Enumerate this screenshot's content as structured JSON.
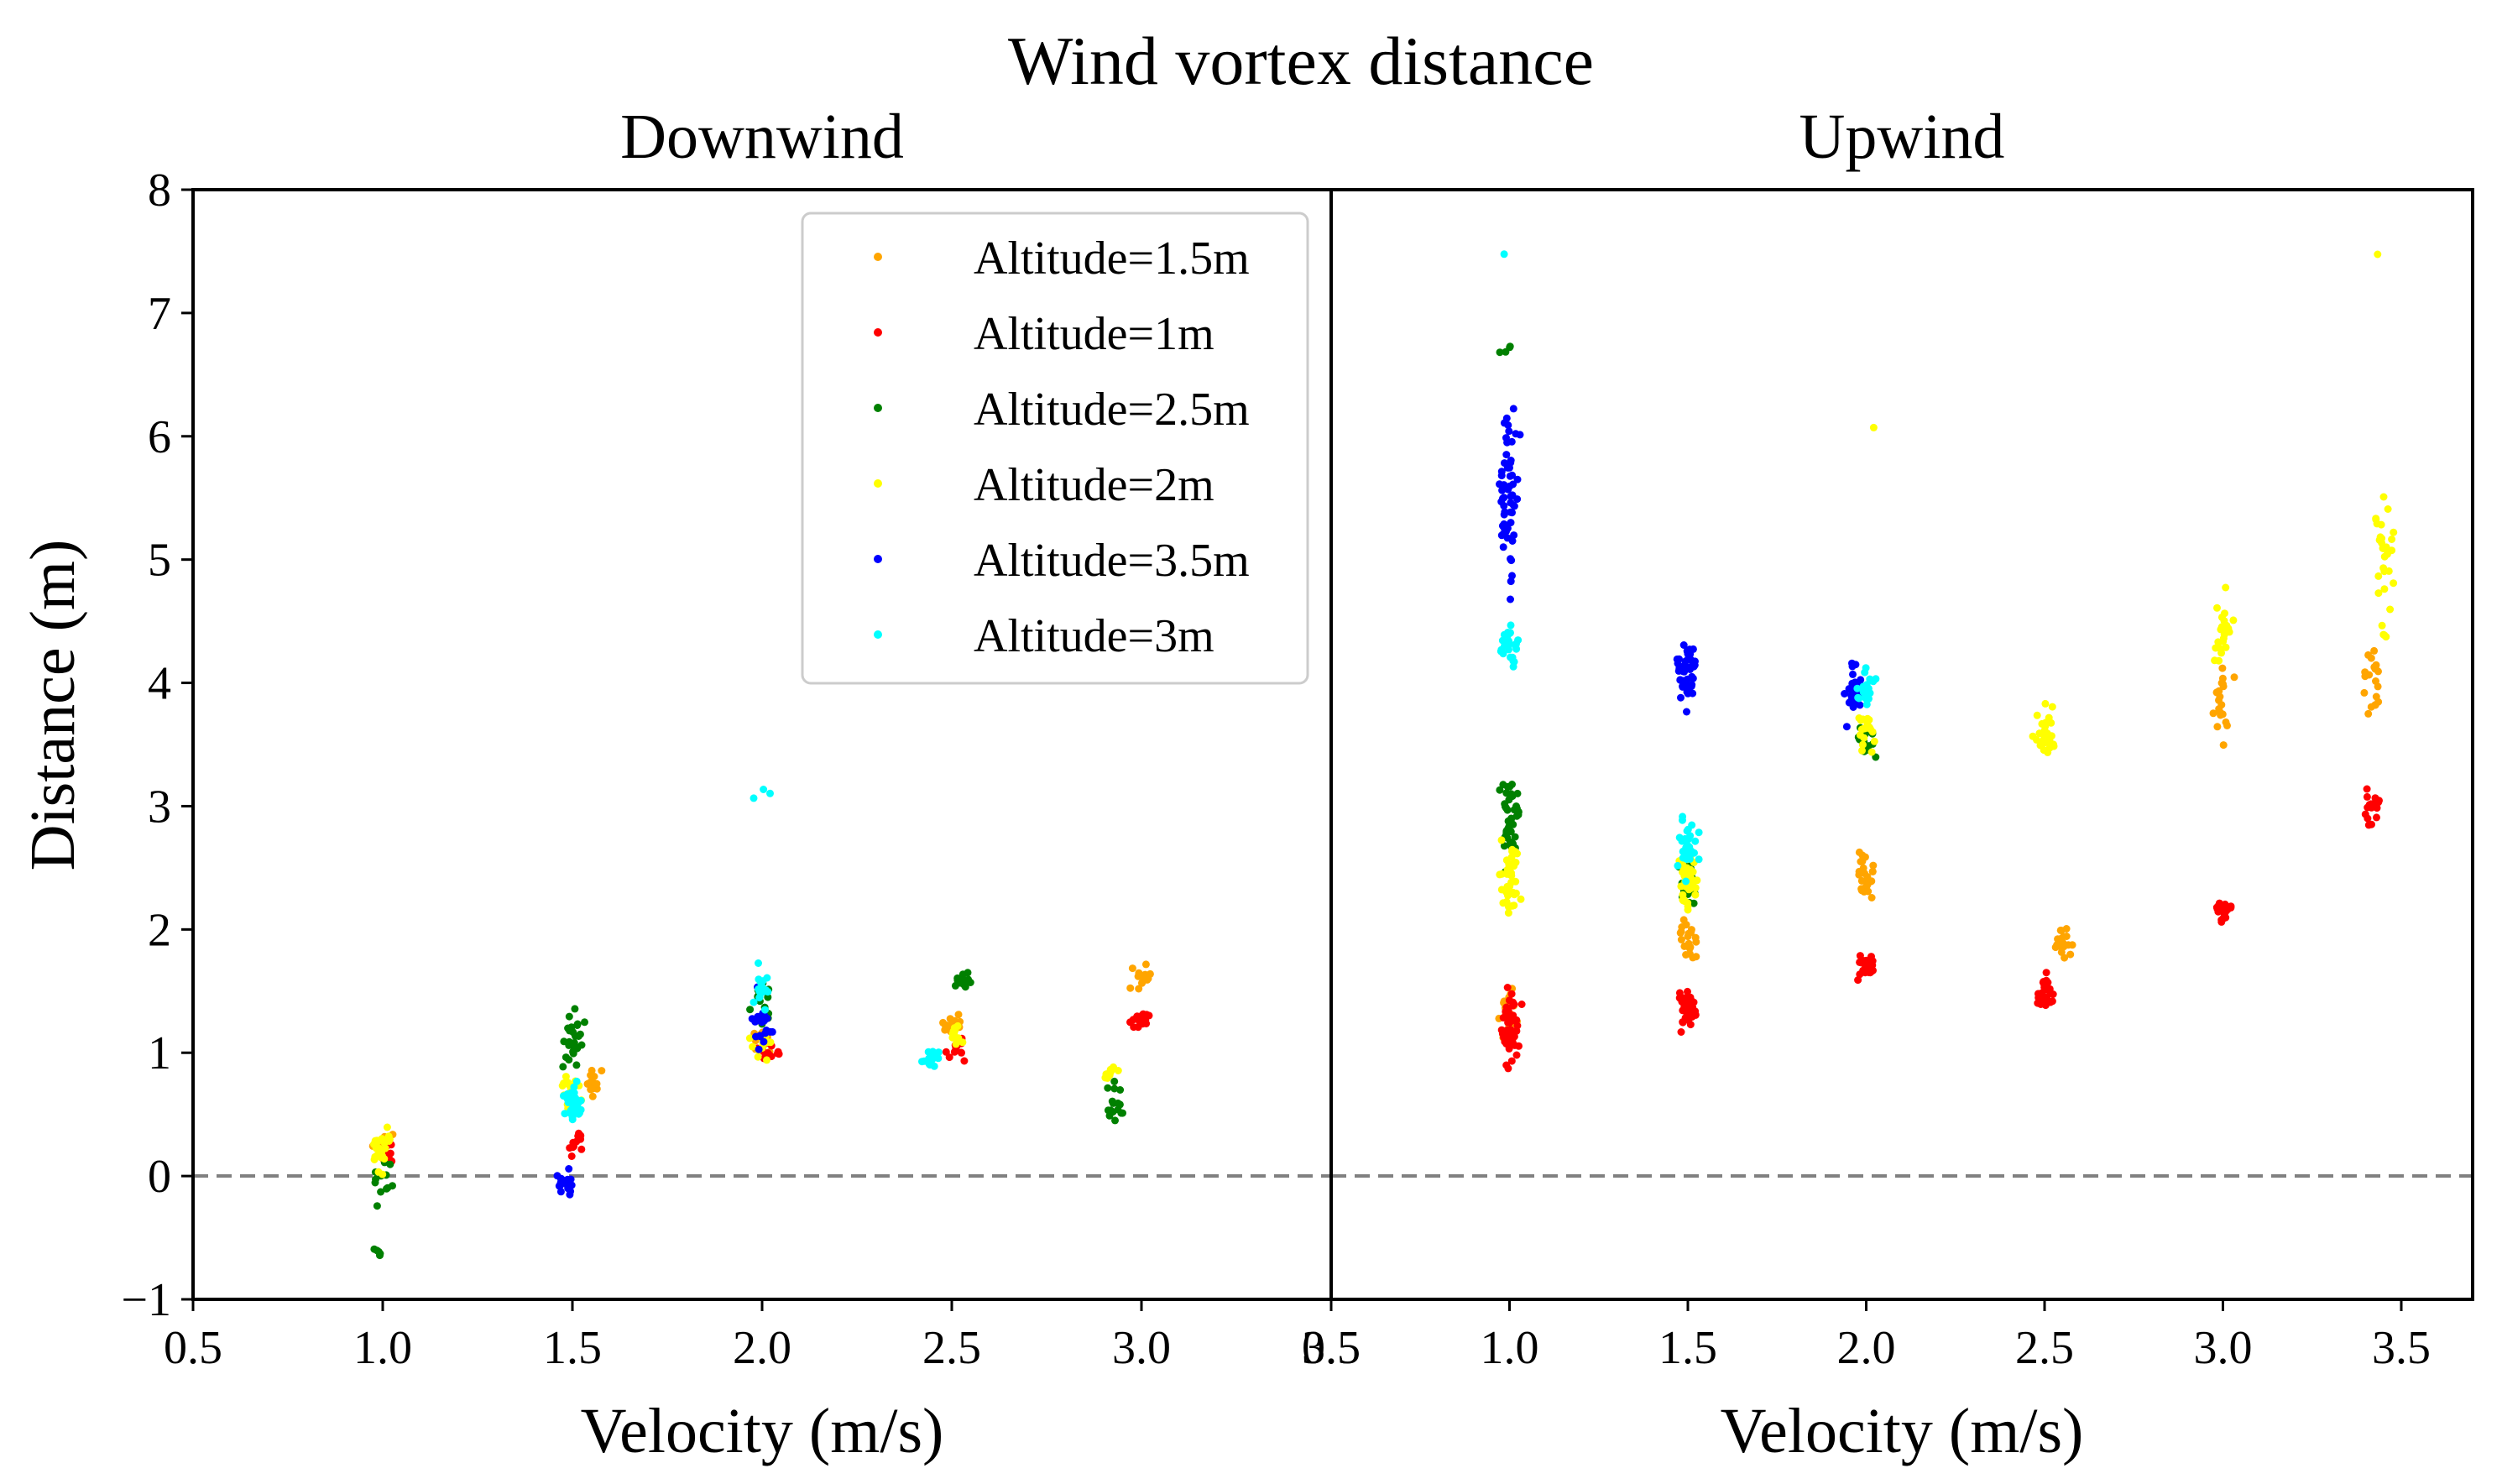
{
  "suptitle": "Wind vortex distance",
  "legend": {
    "placement": "upper center of left panel",
    "entries": [
      {
        "label": "Altitude=1.5m",
        "color": "#ffa500"
      },
      {
        "label": "Altitude=1m",
        "color": "#ff0000"
      },
      {
        "label": "Altitude=2.5m",
        "color": "#008000"
      },
      {
        "label": "Altitude=2m",
        "color": "#ffff00"
      },
      {
        "label": "Altitude=3.5m",
        "color": "#0000ff"
      },
      {
        "label": "Altitude=3m",
        "color": "#00ffff"
      }
    ]
  },
  "chart_data": [
    {
      "type": "scatter",
      "title": "Downwind",
      "xlabel": "Velocity (m/s)",
      "ylabel": "Distance (m)",
      "xlim": [
        0.5,
        3.5
      ],
      "ylim": [
        -1,
        8
      ],
      "xticks": [
        "0.5",
        "1.0",
        "1.5",
        "2.0",
        "2.5",
        "3.0",
        "3.5"
      ],
      "yticks": [
        "−1",
        "0",
        "1",
        "2",
        "3",
        "4",
        "5",
        "6",
        "7",
        "8"
      ],
      "reference_line_y": 0,
      "grid": false,
      "clusters": [
        {
          "series": "Altitude=1.5m",
          "x": 1.0,
          "y_mean": 0.25,
          "y_spread": 0.2,
          "n": 8
        },
        {
          "series": "Altitude=1m",
          "x": 1.0,
          "y_mean": 0.2,
          "y_spread": 0.2,
          "n": 10
        },
        {
          "series": "Altitude=2.5m",
          "x": 1.0,
          "y_mean": 0.0,
          "y_spread": 0.35,
          "n": 12
        },
        {
          "series": "Altitude=2.5m",
          "x": 0.98,
          "y_mean": -0.6,
          "y_spread": 0.08,
          "n": 5
        },
        {
          "series": "Altitude=2m",
          "x": 1.0,
          "y_mean": 0.25,
          "y_spread": 0.3,
          "n": 25
        },
        {
          "series": "Altitude=1.5m",
          "x": 1.55,
          "y_mean": 0.75,
          "y_spread": 0.2,
          "n": 12
        },
        {
          "series": "Altitude=1m",
          "x": 1.5,
          "y_mean": 0.25,
          "y_spread": 0.2,
          "n": 12
        },
        {
          "series": "Altitude=2.5m",
          "x": 1.5,
          "y_mean": 1.1,
          "y_spread": 0.5,
          "n": 28
        },
        {
          "series": "Altitude=2m",
          "x": 1.5,
          "y_mean": 0.65,
          "y_spread": 0.25,
          "n": 22
        },
        {
          "series": "Altitude=3.5m",
          "x": 1.48,
          "y_mean": -0.05,
          "y_spread": 0.15,
          "n": 20
        },
        {
          "series": "Altitude=3m",
          "x": 1.5,
          "y_mean": 0.6,
          "y_spread": 0.25,
          "n": 35
        },
        {
          "series": "Altitude=1.5m",
          "x": 2.0,
          "y_mean": 1.1,
          "y_spread": 0.2,
          "n": 10
        },
        {
          "series": "Altitude=1m",
          "x": 2.02,
          "y_mean": 1.0,
          "y_spread": 0.15,
          "n": 12
        },
        {
          "series": "Altitude=2.5m",
          "x": 2.0,
          "y_mean": 1.4,
          "y_spread": 0.3,
          "n": 15
        },
        {
          "series": "Altitude=2m",
          "x": 2.0,
          "y_mean": 1.05,
          "y_spread": 0.2,
          "n": 12
        },
        {
          "series": "Altitude=3.5m",
          "x": 2.0,
          "y_mean": 1.3,
          "y_spread": 0.55,
          "n": 22
        },
        {
          "series": "Altitude=3m",
          "x": 2.0,
          "y_mean": 1.5,
          "y_spread": 0.3,
          "n": 18
        },
        {
          "series": "Altitude=3m",
          "x": 2.0,
          "y_mean": 3.1,
          "y_spread": 0.12,
          "n": 3
        },
        {
          "series": "Altitude=1.5m",
          "x": 2.5,
          "y_mean": 1.2,
          "y_spread": 0.15,
          "n": 14
        },
        {
          "series": "Altitude=1m",
          "x": 2.52,
          "y_mean": 1.05,
          "y_spread": 0.18,
          "n": 16
        },
        {
          "series": "Altitude=2.5m",
          "x": 2.53,
          "y_mean": 1.6,
          "y_spread": 0.15,
          "n": 14
        },
        {
          "series": "Altitude=2m",
          "x": 2.5,
          "y_mean": 1.15,
          "y_spread": 0.15,
          "n": 12
        },
        {
          "series": "Altitude=3m",
          "x": 2.45,
          "y_mean": 0.95,
          "y_spread": 0.15,
          "n": 16
        },
        {
          "series": "Altitude=1.5m",
          "x": 3.0,
          "y_mean": 1.6,
          "y_spread": 0.2,
          "n": 16
        },
        {
          "series": "Altitude=1m",
          "x": 3.0,
          "y_mean": 1.3,
          "y_spread": 0.15,
          "n": 16
        },
        {
          "series": "Altitude=2.5m",
          "x": 2.93,
          "y_mean": 0.6,
          "y_spread": 0.25,
          "n": 16
        },
        {
          "series": "Altitude=2m",
          "x": 2.92,
          "y_mean": 0.85,
          "y_spread": 0.1,
          "n": 10
        }
      ]
    },
    {
      "type": "scatter",
      "title": "Upwind",
      "xlabel": "Velocity (m/s)",
      "ylabel": "",
      "xlim": [
        0.5,
        3.7
      ],
      "ylim": [
        -1,
        8
      ],
      "xticks": [
        "0.5",
        "1.0",
        "1.5",
        "2.0",
        "2.5",
        "3.0",
        "3.5"
      ],
      "reference_line_y": 0,
      "grid": false,
      "clusters": [
        {
          "series": "Altitude=1.5m",
          "x": 1.0,
          "y_mean": 1.3,
          "y_spread": 0.4,
          "n": 30
        },
        {
          "series": "Altitude=1m",
          "x": 1.0,
          "y_mean": 1.2,
          "y_spread": 0.5,
          "n": 60
        },
        {
          "series": "Altitude=2.5m",
          "x": 1.0,
          "y_mean": 2.9,
          "y_spread": 0.6,
          "n": 40
        },
        {
          "series": "Altitude=2.5m",
          "x": 1.0,
          "y_mean": 6.7,
          "y_spread": 0.2,
          "n": 4
        },
        {
          "series": "Altitude=2m",
          "x": 1.0,
          "y_mean": 2.4,
          "y_spread": 0.5,
          "n": 40
        },
        {
          "series": "Altitude=3.5m",
          "x": 1.0,
          "y_mean": 5.5,
          "y_spread": 1.2,
          "n": 60
        },
        {
          "series": "Altitude=3m",
          "x": 1.0,
          "y_mean": 4.3,
          "y_spread": 0.3,
          "n": 25
        },
        {
          "series": "Altitude=3m",
          "x": 1.0,
          "y_mean": 7.48,
          "y_spread": 0.02,
          "n": 1
        },
        {
          "series": "Altitude=1.5m",
          "x": 1.5,
          "y_mean": 1.9,
          "y_spread": 0.3,
          "n": 20
        },
        {
          "series": "Altitude=1m",
          "x": 1.5,
          "y_mean": 1.35,
          "y_spread": 0.25,
          "n": 40
        },
        {
          "series": "Altitude=2.5m",
          "x": 1.5,
          "y_mean": 2.4,
          "y_spread": 0.3,
          "n": 25
        },
        {
          "series": "Altitude=2m",
          "x": 1.5,
          "y_mean": 2.4,
          "y_spread": 0.5,
          "n": 45
        },
        {
          "series": "Altitude=3.5m",
          "x": 1.5,
          "y_mean": 4.1,
          "y_spread": 0.45,
          "n": 50
        },
        {
          "series": "Altitude=3m",
          "x": 1.5,
          "y_mean": 2.65,
          "y_spread": 0.35,
          "n": 35
        },
        {
          "series": "Altitude=1.5m",
          "x": 2.0,
          "y_mean": 2.45,
          "y_spread": 0.3,
          "n": 25
        },
        {
          "series": "Altitude=1m",
          "x": 2.0,
          "y_mean": 1.7,
          "y_spread": 0.2,
          "n": 30
        },
        {
          "series": "Altitude=2.5m",
          "x": 2.0,
          "y_mean": 3.6,
          "y_spread": 0.35,
          "n": 20
        },
        {
          "series": "Altitude=2m",
          "x": 2.0,
          "y_mean": 3.6,
          "y_spread": 0.35,
          "n": 18
        },
        {
          "series": "Altitude=2m",
          "x": 2.03,
          "y_mean": 6.08,
          "y_spread": 0.02,
          "n": 1
        },
        {
          "series": "Altitude=3.5m",
          "x": 1.97,
          "y_mean": 3.9,
          "y_spread": 0.6,
          "n": 30
        },
        {
          "series": "Altitude=3m",
          "x": 2.0,
          "y_mean": 3.95,
          "y_spread": 0.3,
          "n": 20
        },
        {
          "series": "Altitude=1.5m",
          "x": 2.55,
          "y_mean": 1.9,
          "y_spread": 0.2,
          "n": 20
        },
        {
          "series": "Altitude=1m",
          "x": 2.5,
          "y_mean": 1.5,
          "y_spread": 0.3,
          "n": 30
        },
        {
          "series": "Altitude=2m",
          "x": 2.5,
          "y_mean": 3.6,
          "y_spread": 0.35,
          "n": 30
        },
        {
          "series": "Altitude=1.5m",
          "x": 3.0,
          "y_mean": 3.8,
          "y_spread": 0.5,
          "n": 20
        },
        {
          "series": "Altitude=1m",
          "x": 3.0,
          "y_mean": 2.15,
          "y_spread": 0.15,
          "n": 30
        },
        {
          "series": "Altitude=2m",
          "x": 3.0,
          "y_mean": 4.4,
          "y_spread": 0.5,
          "n": 25
        },
        {
          "series": "Altitude=1.5m",
          "x": 3.42,
          "y_mean": 4.0,
          "y_spread": 0.5,
          "n": 20
        },
        {
          "series": "Altitude=1m",
          "x": 3.42,
          "y_mean": 3.0,
          "y_spread": 0.3,
          "n": 18
        },
        {
          "series": "Altitude=2m",
          "x": 3.45,
          "y_mean": 5.0,
          "y_spread": 1.0,
          "n": 30
        },
        {
          "series": "Altitude=2m",
          "x": 3.42,
          "y_mean": 7.48,
          "y_spread": 0.02,
          "n": 1
        }
      ]
    }
  ]
}
